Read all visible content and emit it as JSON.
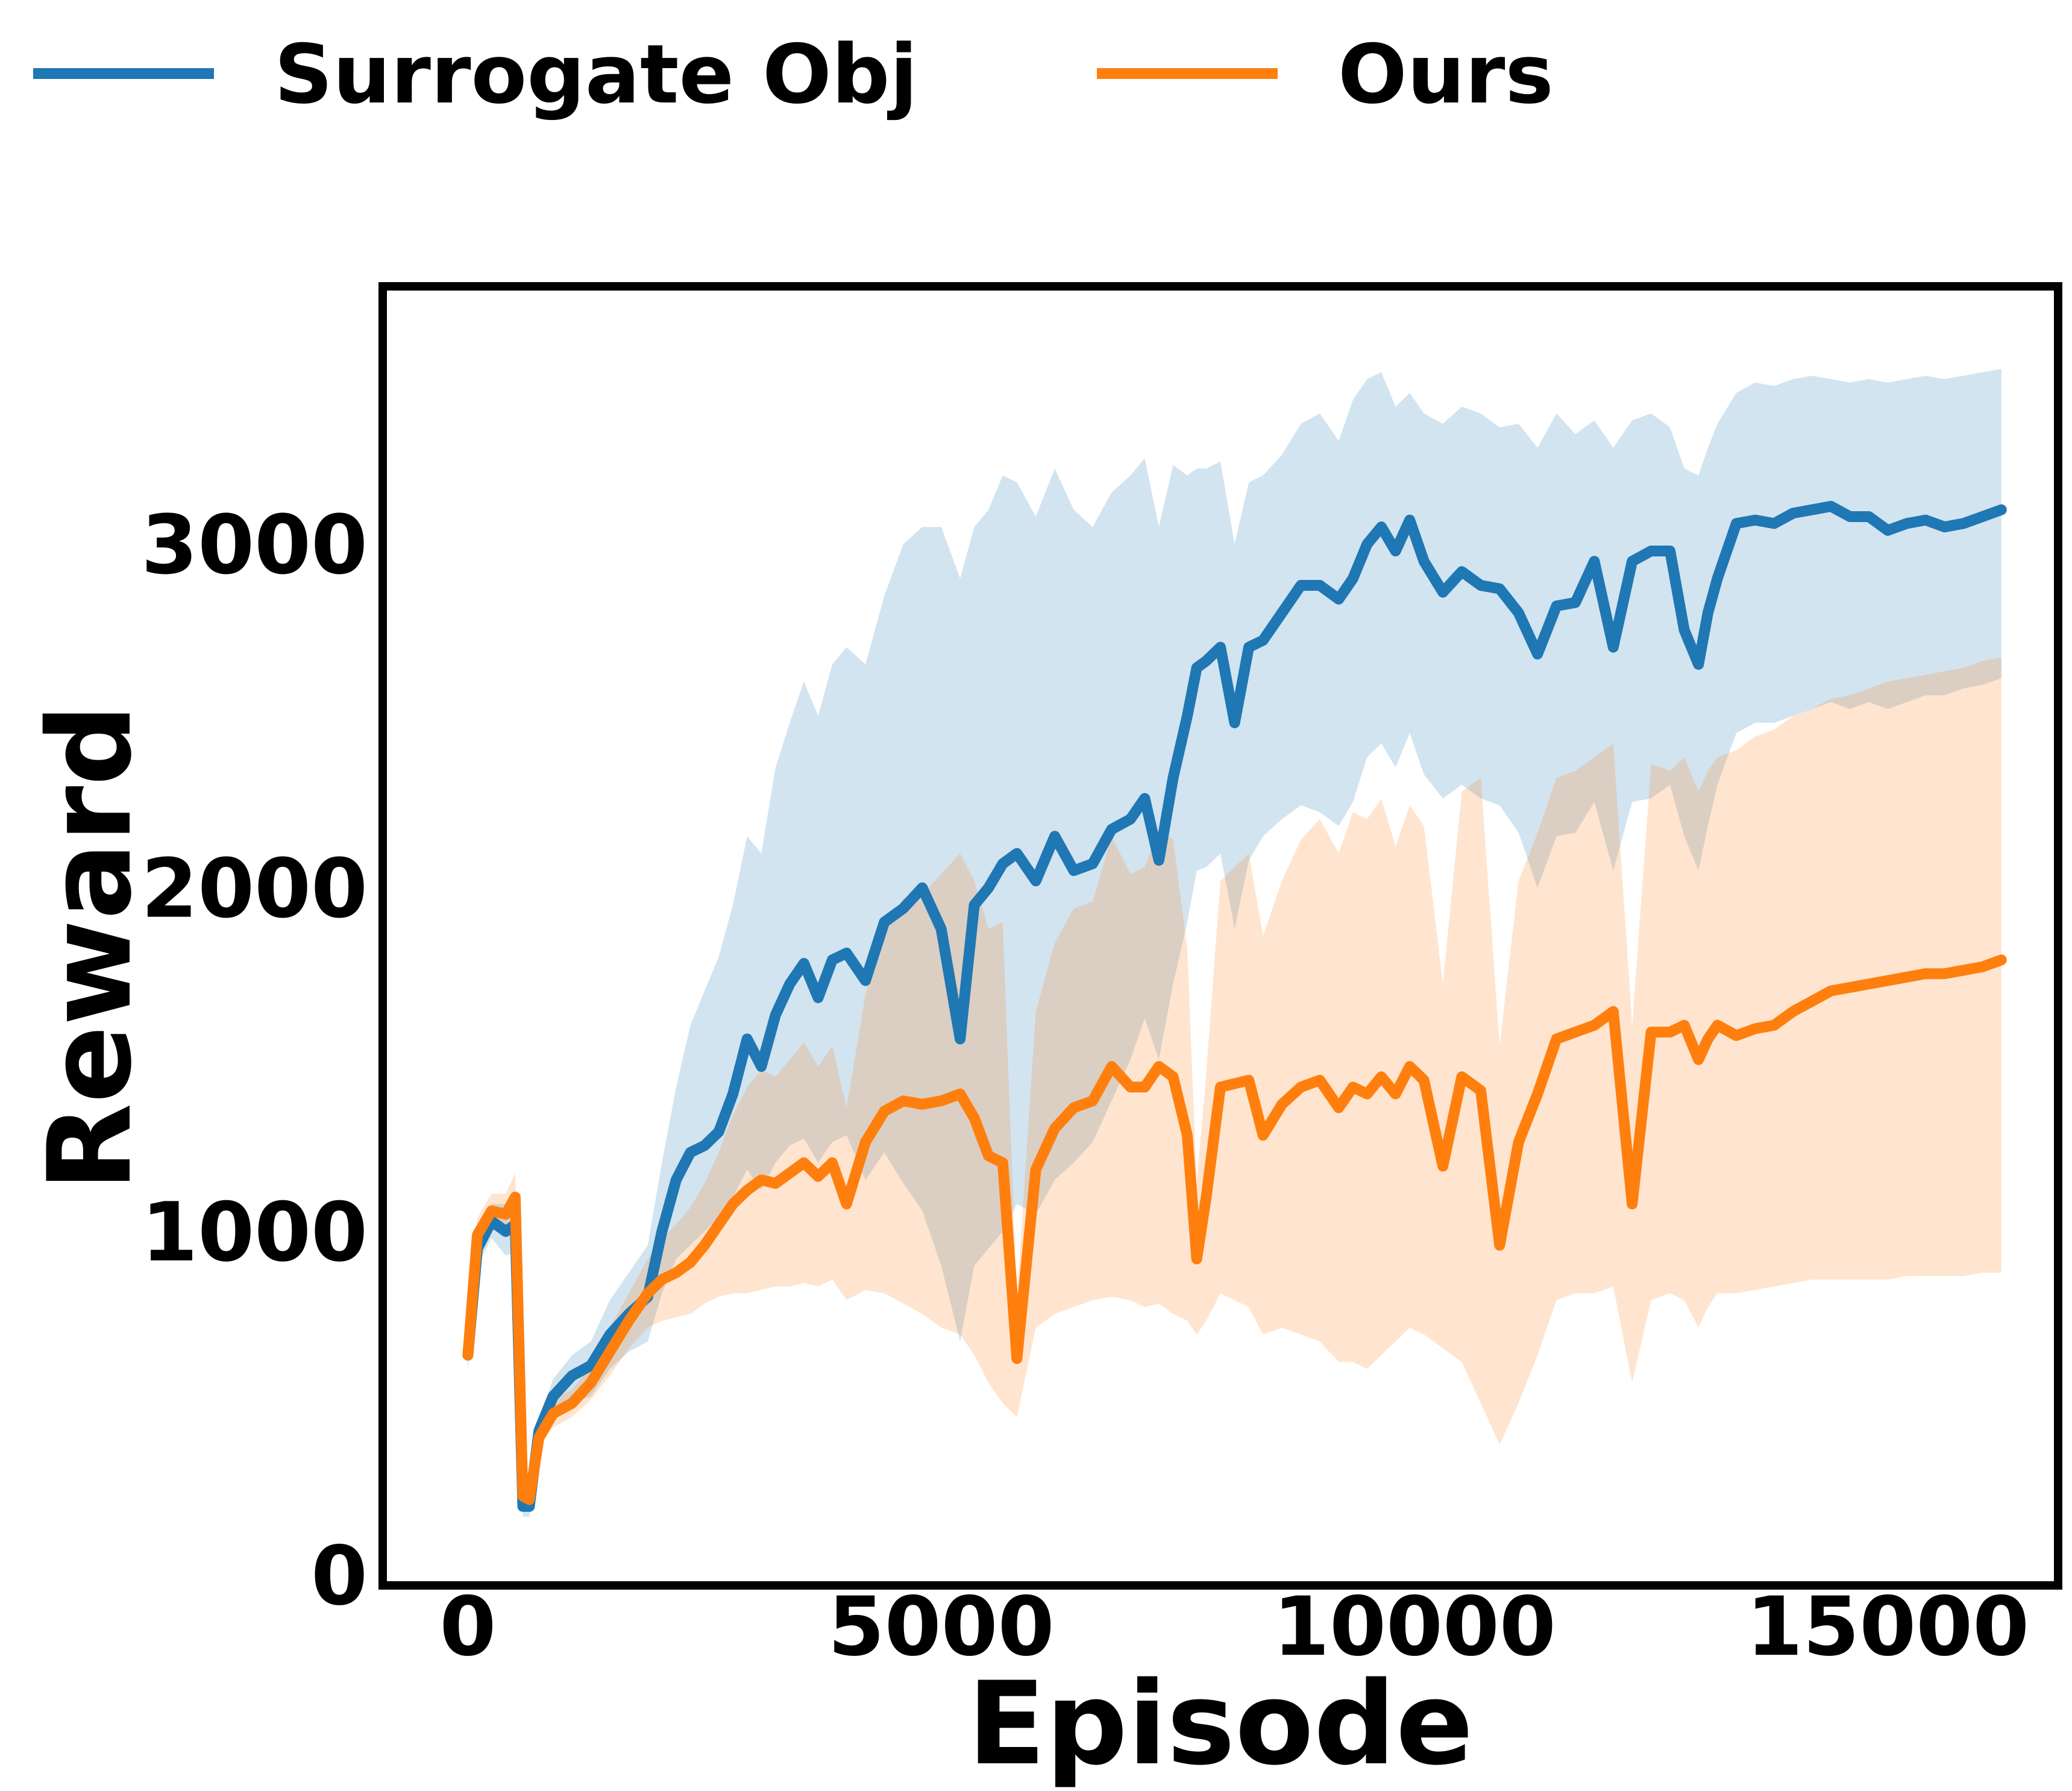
{
  "chart_data": {
    "type": "line",
    "xlabel": "Episode",
    "ylabel": "Reward",
    "xlim": [
      -900,
      16800
    ],
    "ylim": [
      -30,
      3750
    ],
    "xticks": [
      0,
      5000,
      10000,
      15000
    ],
    "xtick_labels": [
      "0",
      "5000",
      "10000",
      "15000"
    ],
    "yticks": [
      0,
      1000,
      2000,
      3000
    ],
    "ytick_labels": [
      "0",
      "1000",
      "2000",
      "3000"
    ],
    "legend_position": "top, outside plot",
    "grid": false,
    "series": [
      {
        "name": "Surrogate Obj",
        "color": "#1f77b4",
        "band_color": "#1f77b4",
        "x": [
          0,
          100,
          250,
          400,
          500,
          580,
          650,
          750,
          900,
          1100,
          1300,
          1500,
          1700,
          1900,
          2050,
          2200,
          2350,
          2500,
          2650,
          2800,
          2950,
          3100,
          3250,
          3400,
          3550,
          3700,
          3850,
          4000,
          4200,
          4400,
          4600,
          4800,
          5000,
          5200,
          5350,
          5500,
          5650,
          5800,
          6000,
          6200,
          6400,
          6600,
          6800,
          7000,
          7150,
          7300,
          7450,
          7600,
          7700,
          7800,
          7950,
          8100,
          8250,
          8400,
          8600,
          8800,
          9000,
          9200,
          9350,
          9500,
          9650,
          9800,
          9950,
          10100,
          10300,
          10500,
          10700,
          10900,
          11100,
          11300,
          11500,
          11700,
          11900,
          12100,
          12300,
          12500,
          12700,
          12850,
          13000,
          13100,
          13200,
          13400,
          13600,
          13800,
          14000,
          14200,
          14400,
          14600,
          14800,
          15000,
          15200,
          15400,
          15600,
          15800,
          16000,
          16200
        ],
        "mean": [
          640,
          950,
          1030,
          1000,
          1020,
          200,
          200,
          420,
          520,
          580,
          610,
          700,
          760,
          810,
          1000,
          1150,
          1230,
          1250,
          1290,
          1400,
          1560,
          1480,
          1630,
          1720,
          1780,
          1680,
          1790,
          1810,
          1730,
          1900,
          1940,
          2000,
          1880,
          1560,
          1950,
          2000,
          2070,
          2100,
          2020,
          2150,
          2050,
          2070,
          2170,
          2200,
          2260,
          2080,
          2320,
          2500,
          2640,
          2660,
          2700,
          2480,
          2700,
          2720,
          2800,
          2880,
          2880,
          2840,
          2900,
          3000,
          3050,
          2980,
          3070,
          2950,
          2860,
          2920,
          2880,
          2870,
          2800,
          2680,
          2820,
          2830,
          2950,
          2700,
          2950,
          2980,
          2980,
          2750,
          2650,
          2800,
          2900,
          3060,
          3070,
          3060,
          3090,
          3100,
          3110,
          3080,
          3080,
          3040,
          3060,
          3070,
          3050,
          3060,
          3080,
          3100
        ],
        "lower": [
          600,
          900,
          980,
          930,
          940,
          170,
          170,
          380,
          460,
          500,
          520,
          600,
          650,
          680,
          820,
          920,
          960,
          1000,
          1040,
          1100,
          1180,
          1120,
          1200,
          1250,
          1270,
          1200,
          1260,
          1280,
          1150,
          1230,
          1140,
          1060,
          900,
          680,
          900,
          950,
          1000,
          1080,
          1050,
          1150,
          1200,
          1260,
          1380,
          1500,
          1620,
          1500,
          1720,
          1900,
          2050,
          2060,
          2100,
          1880,
          2080,
          2150,
          2200,
          2240,
          2220,
          2180,
          2250,
          2380,
          2420,
          2350,
          2450,
          2330,
          2260,
          2300,
          2260,
          2240,
          2160,
          2000,
          2150,
          2160,
          2250,
          2050,
          2250,
          2260,
          2300,
          2150,
          2050,
          2180,
          2300,
          2450,
          2480,
          2480,
          2500,
          2520,
          2540,
          2520,
          2540,
          2520,
          2540,
          2560,
          2560,
          2580,
          2590,
          2610
        ],
        "upper": [
          680,
          1000,
          1080,
          1080,
          1120,
          230,
          230,
          460,
          570,
          640,
          680,
          800,
          880,
          960,
          1200,
          1420,
          1600,
          1700,
          1800,
          1950,
          2150,
          2100,
          2350,
          2480,
          2600,
          2500,
          2650,
          2700,
          2650,
          2850,
          3000,
          3050,
          3050,
          2900,
          3050,
          3100,
          3200,
          3180,
          3080,
          3220,
          3100,
          3050,
          3150,
          3200,
          3250,
          3050,
          3230,
          3200,
          3220,
          3220,
          3240,
          3000,
          3180,
          3200,
          3260,
          3350,
          3380,
          3300,
          3420,
          3480,
          3500,
          3400,
          3440,
          3380,
          3350,
          3400,
          3380,
          3340,
          3350,
          3280,
          3380,
          3320,
          3360,
          3280,
          3360,
          3380,
          3340,
          3220,
          3200,
          3280,
          3350,
          3440,
          3470,
          3460,
          3480,
          3490,
          3480,
          3470,
          3480,
          3470,
          3480,
          3490,
          3480,
          3490,
          3500,
          3510
        ]
      },
      {
        "name": "Ours",
        "color": "#ff7f0e",
        "band_color": "#ff7f0e",
        "x": [
          0,
          100,
          250,
          400,
          500,
          580,
          650,
          750,
          900,
          1100,
          1300,
          1500,
          1700,
          1900,
          2050,
          2200,
          2350,
          2500,
          2650,
          2800,
          2950,
          3100,
          3250,
          3400,
          3550,
          3700,
          3850,
          4000,
          4200,
          4400,
          4600,
          4800,
          5000,
          5200,
          5350,
          5500,
          5650,
          5800,
          6000,
          6200,
          6400,
          6600,
          6800,
          7000,
          7150,
          7300,
          7450,
          7600,
          7700,
          7800,
          7950,
          8100,
          8250,
          8400,
          8600,
          8800,
          9000,
          9200,
          9350,
          9500,
          9650,
          9800,
          9950,
          10100,
          10300,
          10500,
          10700,
          10900,
          11100,
          11300,
          11500,
          11700,
          11900,
          12100,
          12300,
          12500,
          12700,
          12850,
          13000,
          13100,
          13200,
          13400,
          13600,
          13800,
          14000,
          14200,
          14400,
          14600,
          14800,
          15000,
          15200,
          15400,
          15600,
          15800,
          16000,
          16200
        ],
        "mean": [
          640,
          990,
          1060,
          1050,
          1100,
          230,
          220,
          400,
          470,
          500,
          560,
          650,
          740,
          820,
          860,
          880,
          910,
          960,
          1020,
          1080,
          1120,
          1150,
          1140,
          1170,
          1200,
          1160,
          1200,
          1080,
          1260,
          1350,
          1380,
          1370,
          1380,
          1400,
          1330,
          1220,
          1200,
          630,
          1180,
          1300,
          1360,
          1380,
          1480,
          1420,
          1420,
          1480,
          1450,
          1280,
          920,
          1100,
          1420,
          1430,
          1440,
          1280,
          1370,
          1420,
          1440,
          1360,
          1420,
          1400,
          1450,
          1400,
          1480,
          1440,
          1190,
          1450,
          1410,
          960,
          1260,
          1400,
          1560,
          1580,
          1600,
          1640,
          1080,
          1580,
          1580,
          1600,
          1500,
          1560,
          1600,
          1570,
          1590,
          1600,
          1640,
          1670,
          1700,
          1710,
          1720,
          1730,
          1740,
          1750,
          1750,
          1760,
          1770,
          1790
        ],
        "lower": [
          600,
          940,
          1010,
          990,
          1030,
          200,
          190,
          370,
          430,
          460,
          510,
          580,
          660,
          720,
          740,
          750,
          760,
          790,
          810,
          820,
          820,
          830,
          840,
          840,
          850,
          840,
          860,
          800,
          830,
          820,
          790,
          760,
          720,
          700,
          640,
          560,
          500,
          460,
          720,
          760,
          780,
          800,
          810,
          800,
          780,
          790,
          760,
          740,
          700,
          740,
          820,
          800,
          780,
          700,
          720,
          700,
          680,
          620,
          620,
          600,
          640,
          680,
          720,
          700,
          660,
          620,
          500,
          380,
          500,
          640,
          800,
          820,
          820,
          840,
          560,
          800,
          820,
          800,
          720,
          780,
          820,
          820,
          830,
          840,
          850,
          860,
          860,
          860,
          860,
          860,
          870,
          870,
          870,
          870,
          880,
          880
        ],
        "upper": [
          680,
          1040,
          1110,
          1110,
          1170,
          260,
          250,
          430,
          510,
          540,
          610,
          720,
          820,
          920,
          980,
          1020,
          1070,
          1140,
          1230,
          1340,
          1420,
          1470,
          1450,
          1500,
          1550,
          1480,
          1540,
          1360,
          1690,
          1880,
          1970,
          1980,
          2040,
          2100,
          2020,
          1880,
          1900,
          800,
          1640,
          1840,
          1940,
          1960,
          2150,
          2040,
          2060,
          2170,
          2140,
          1820,
          1140,
          1460,
          2020,
          2060,
          2100,
          1860,
          2020,
          2140,
          2200,
          2100,
          2220,
          2200,
          2260,
          2120,
          2240,
          2180,
          1720,
          2280,
          2320,
          1540,
          2020,
          2160,
          2320,
          2340,
          2380,
          2420,
          1600,
          2360,
          2340,
          2380,
          2280,
          2340,
          2380,
          2400,
          2440,
          2460,
          2500,
          2520,
          2550,
          2560,
          2580,
          2600,
          2610,
          2620,
          2630,
          2640,
          2660,
          2670
        ]
      }
    ]
  }
}
